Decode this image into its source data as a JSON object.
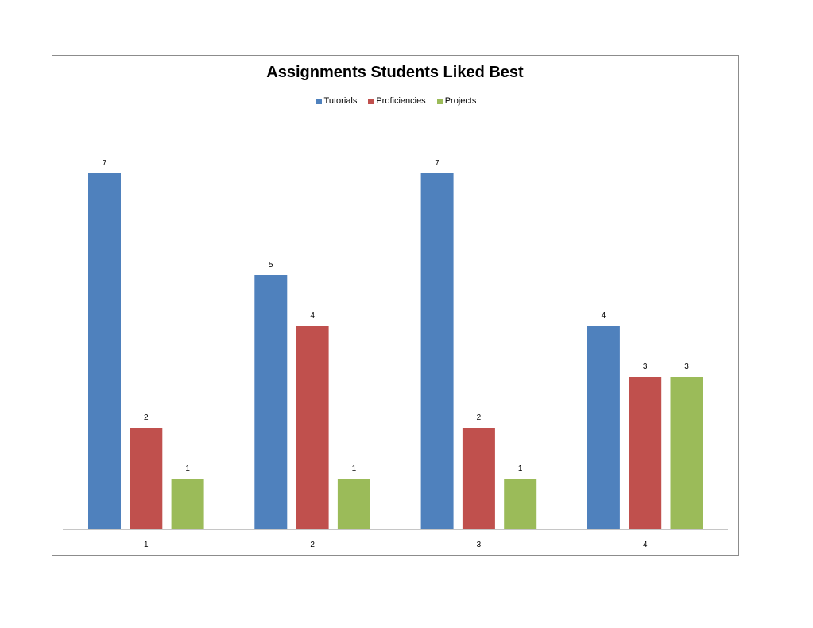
{
  "chart_data": {
    "type": "bar",
    "title": "Assignments Students Liked Best",
    "categories": [
      "1",
      "2",
      "3",
      "4"
    ],
    "series": [
      {
        "name": "Tutorials",
        "values": [
          7,
          5,
          7,
          4
        ],
        "color": "#4f81bd"
      },
      {
        "name": "Proficiencies",
        "values": [
          2,
          4,
          2,
          3
        ],
        "color": "#c0504d"
      },
      {
        "name": "Projects",
        "values": [
          1,
          1,
          1,
          3
        ],
        "color": "#9bbb59"
      }
    ],
    "xlabel": "",
    "ylabel": "",
    "ylim": [
      0,
      7
    ],
    "grid": false,
    "legend_position": "top",
    "data_labels": true
  }
}
